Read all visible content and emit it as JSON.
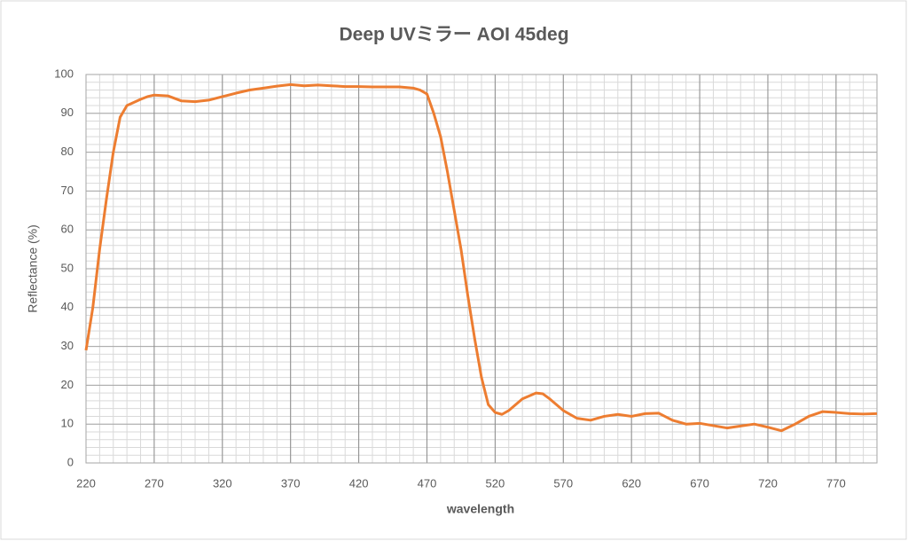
{
  "chart_data": {
    "type": "line",
    "title": "Deep UVミラー AOI 45deg",
    "x_label": "wavelength",
    "y_label": "Reflectance (%)",
    "x": [
      220,
      225,
      230,
      235,
      240,
      245,
      250,
      255,
      260,
      265,
      270,
      280,
      290,
      300,
      310,
      320,
      330,
      340,
      350,
      360,
      370,
      380,
      390,
      400,
      410,
      420,
      430,
      440,
      450,
      460,
      465,
      470,
      475,
      480,
      485,
      490,
      495,
      500,
      505,
      510,
      515,
      520,
      525,
      530,
      540,
      550,
      555,
      560,
      570,
      580,
      590,
      600,
      610,
      620,
      630,
      640,
      650,
      660,
      670,
      680,
      690,
      700,
      710,
      720,
      730,
      740,
      750,
      760,
      770,
      780,
      790,
      800
    ],
    "series": [
      {
        "name": "Reflectance",
        "color": "#ed7d31",
        "values": [
          29,
          40,
          55,
          68,
          80,
          89,
          92,
          92.8,
          93.6,
          94.3,
          94.7,
          94.5,
          93.2,
          93,
          93.4,
          94.3,
          95.2,
          96,
          96.5,
          97,
          97.4,
          97.1,
          97.3,
          97.1,
          96.9,
          96.9,
          96.8,
          96.8,
          96.8,
          96.5,
          96,
          95,
          90,
          84,
          75,
          65,
          55,
          43,
          32,
          22,
          15,
          13,
          12.5,
          13.5,
          16.5,
          18,
          17.8,
          16.5,
          13.5,
          11.5,
          11,
          12,
          12.5,
          12,
          12.7,
          12.8,
          11,
          10,
          10.2,
          9.6,
          9,
          9.5,
          10,
          9.2,
          8.3,
          10,
          12,
          13.2,
          13,
          12.7,
          12.6,
          12.7
        ]
      }
    ],
    "xlim": [
      220,
      800
    ],
    "xticks": [
      220,
      270,
      320,
      370,
      420,
      470,
      520,
      570,
      620,
      670,
      720,
      770
    ],
    "ylim": [
      0,
      100
    ],
    "yticks": [
      0,
      10,
      20,
      30,
      40,
      50,
      60,
      70,
      80,
      90,
      100
    ],
    "grid": true,
    "minor_grid": true
  }
}
